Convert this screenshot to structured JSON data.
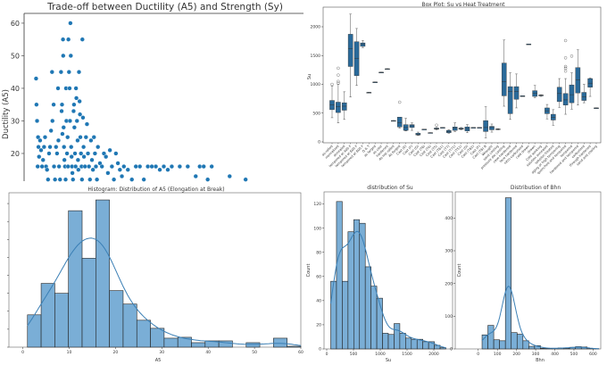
{
  "chart_data": [
    {
      "type": "scatter",
      "title": "Trade-off between Ductility (A5) and Strength (Sy)",
      "xlabel": "",
      "ylabel": "Ductility (A5)",
      "ylim": [
        11.5,
        63
      ],
      "xlim": [
        0,
        1400
      ],
      "yticks": [
        "20",
        "30",
        "40",
        "50",
        "60"
      ],
      "color": "#1f77b4",
      "points": [
        [
          60,
          43
        ],
        [
          62,
          35
        ],
        [
          65,
          30
        ],
        [
          70,
          25
        ],
        [
          72,
          22
        ],
        [
          75,
          19
        ],
        [
          68,
          16
        ],
        [
          80,
          24
        ],
        [
          85,
          21
        ],
        [
          90,
          16
        ],
        [
          95,
          18
        ],
        [
          100,
          22
        ],
        [
          105,
          25
        ],
        [
          110,
          16
        ],
        [
          115,
          15
        ],
        [
          120,
          12
        ],
        [
          125,
          20
        ],
        [
          130,
          22
        ],
        [
          135,
          27
        ],
        [
          140,
          45
        ],
        [
          142,
          30
        ],
        [
          148,
          35
        ],
        [
          150,
          16
        ],
        [
          155,
          12
        ],
        [
          160,
          22
        ],
        [
          165,
          20
        ],
        [
          170,
          40
        ],
        [
          172,
          24
        ],
        [
          175,
          16
        ],
        [
          180,
          12
        ],
        [
          185,
          45
        ],
        [
          188,
          33
        ],
        [
          190,
          35
        ],
        [
          192,
          26
        ],
        [
          195,
          55
        ],
        [
          196,
          50
        ],
        [
          198,
          28
        ],
        [
          200,
          22
        ],
        [
          202,
          18
        ],
        [
          205,
          16
        ],
        [
          208,
          12
        ],
        [
          210,
          40
        ],
        [
          212,
          30
        ],
        [
          215,
          20
        ],
        [
          218,
          25
        ],
        [
          220,
          16
        ],
        [
          222,
          55
        ],
        [
          225,
          45
        ],
        [
          228,
          40
        ],
        [
          230,
          30
        ],
        [
          232,
          60
        ],
        [
          234,
          50
        ],
        [
          236,
          22
        ],
        [
          238,
          19
        ],
        [
          240,
          16
        ],
        [
          242,
          14
        ],
        [
          245,
          12
        ],
        [
          248,
          33
        ],
        [
          250,
          35
        ],
        [
          252,
          28
        ],
        [
          255,
          20
        ],
        [
          258,
          16
        ],
        [
          260,
          40
        ],
        [
          262,
          37
        ],
        [
          265,
          30
        ],
        [
          268,
          24
        ],
        [
          270,
          18
        ],
        [
          272,
          15
        ],
        [
          275,
          45
        ],
        [
          278,
          36
        ],
        [
          280,
          32
        ],
        [
          282,
          25
        ],
        [
          285,
          20
        ],
        [
          288,
          16
        ],
        [
          290,
          12
        ],
        [
          292,
          55
        ],
        [
          295,
          31
        ],
        [
          298,
          22
        ],
        [
          300,
          19
        ],
        [
          305,
          16
        ],
        [
          310,
          25
        ],
        [
          315,
          29
        ],
        [
          320,
          20
        ],
        [
          325,
          16
        ],
        [
          330,
          12
        ],
        [
          335,
          24
        ],
        [
          340,
          18
        ],
        [
          345,
          15
        ],
        [
          350,
          25
        ],
        [
          355,
          20
        ],
        [
          360,
          16
        ],
        [
          365,
          12
        ],
        [
          370,
          22
        ],
        [
          380,
          17
        ],
        [
          390,
          16
        ],
        [
          400,
          20
        ],
        [
          410,
          19
        ],
        [
          420,
          14
        ],
        [
          430,
          21
        ],
        [
          440,
          16
        ],
        [
          450,
          12
        ],
        [
          460,
          20
        ],
        [
          470,
          17
        ],
        [
          480,
          15
        ],
        [
          490,
          13
        ],
        [
          500,
          16
        ],
        [
          520,
          15
        ],
        [
          540,
          12
        ],
        [
          560,
          16
        ],
        [
          580,
          16
        ],
        [
          600,
          12
        ],
        [
          620,
          16
        ],
        [
          640,
          16
        ],
        [
          660,
          16
        ],
        [
          680,
          15
        ],
        [
          700,
          16
        ],
        [
          720,
          15
        ],
        [
          740,
          16
        ],
        [
          780,
          16
        ],
        [
          820,
          16
        ],
        [
          860,
          13
        ],
        [
          880,
          16
        ],
        [
          900,
          16
        ],
        [
          920,
          12
        ],
        [
          940,
          16
        ],
        [
          1030,
          13
        ],
        [
          1110,
          12
        ]
      ]
    },
    {
      "type": "box",
      "title": "Box Plot: Su vs Heat Treatment",
      "ylabel": "Su",
      "ylim": [
        0,
        2340
      ],
      "yticks": [
        "0",
        "500",
        "1000",
        "1500",
        "2000"
      ],
      "color": "#2a6a9a",
      "categories": [
        "as-rolled",
        "normalized",
        "annealed",
        "tempered at 400 F",
        "tempered at 600 F",
        "tempered at 800 F",
        "Q & T",
        "as forged",
        "as cast",
        "hardened",
        "As hot rolled",
        "As forged",
        "Cast (E)",
        "Cast (F)",
        "Cast (G)",
        "Cast (T6)",
        "Cast (T4)",
        "Cast (T5)",
        "Cast (T61)",
        "Cast (T7)",
        "Cast (T71)",
        "Cast (T51)",
        "Cast (O)",
        "Cast (T62)",
        "Cast (F)",
        "Cast (T6) B",
        "Wrought",
        "sand casting",
        "pressure die casting",
        "case-hardened",
        "face hardened",
        "nitro-carburised",
        "cold drawn",
        "drawn",
        "Cold working",
        "solution annealed",
        "solution treated",
        "aging or high tempering",
        "quenched and tempered",
        "tempered",
        "hardened and tempered",
        "carburized",
        "through hardened",
        "sand and cooling"
      ],
      "boxes": [
        [
          420,
          560,
          640,
          720,
          970,
          [
            1000
          ]
        ],
        [
          330,
          510,
          610,
          690,
          1000,
          [
            1020,
            1050,
            1160,
            1280
          ]
        ],
        [
          390,
          550,
          620,
          680,
          870,
          []
        ],
        [
          780,
          1310,
          1620,
          1870,
          2220,
          []
        ],
        [
          980,
          1150,
          1450,
          1740,
          1970,
          []
        ],
        [
          1640,
          1660,
          1700,
          1720,
          1760,
          []
        ],
        [
          860,
          860,
          860,
          860,
          860,
          []
        ],
        [
          1040,
          1040,
          1040,
          1040,
          1040,
          []
        ],
        [
          1210,
          1210,
          1210,
          1210,
          1210,
          []
        ],
        [
          1270,
          1270,
          1270,
          1270,
          1270,
          []
        ],
        [
          370,
          370,
          370,
          370,
          370,
          []
        ],
        [
          240,
          260,
          330,
          430,
          430,
          [
            690
          ]
        ],
        [
          190,
          200,
          250,
          300,
          410,
          []
        ],
        [
          200,
          250,
          280,
          300,
          330,
          []
        ],
        [
          110,
          120,
          135,
          150,
          170,
          []
        ],
        [
          220,
          220,
          220,
          220,
          220,
          []
        ],
        [
          160,
          160,
          160,
          160,
          160,
          []
        ],
        [
          210,
          220,
          230,
          240,
          250,
          [
            290
          ]
        ],
        [
          250,
          250,
          250,
          250,
          250,
          []
        ],
        [
          150,
          160,
          180,
          200,
          210,
          []
        ],
        [
          180,
          200,
          240,
          260,
          330,
          []
        ],
        [
          210,
          220,
          230,
          240,
          250,
          []
        ],
        [
          160,
          190,
          230,
          260,
          300,
          []
        ],
        [
          250,
          250,
          250,
          250,
          250,
          []
        ],
        [
          250,
          250,
          250,
          250,
          250,
          []
        ],
        [
          70,
          180,
          250,
          370,
          610,
          []
        ],
        [
          170,
          210,
          250,
          270,
          310,
          []
        ],
        [
          210,
          215,
          220,
          225,
          230,
          []
        ],
        [
          620,
          800,
          1050,
          1370,
          1770,
          []
        ],
        [
          390,
          490,
          880,
          960,
          1200,
          []
        ],
        [
          590,
          740,
          880,
          960,
          1180,
          []
        ],
        [
          800,
          800,
          800,
          800,
          800,
          []
        ],
        [
          1700,
          1700,
          1700,
          1700,
          1700,
          []
        ],
        [
          770,
          790,
          840,
          890,
          980,
          []
        ],
        [
          790,
          800,
          810,
          815,
          820,
          []
        ],
        [
          400,
          490,
          540,
          590,
          650,
          []
        ],
        [
          290,
          380,
          430,
          480,
          560,
          []
        ],
        [
          600,
          700,
          840,
          950,
          1100,
          []
        ],
        [
          480,
          640,
          730,
          840,
          1100,
          [
            1230,
            1280,
            1310,
            1460,
            1760
          ]
        ],
        [
          570,
          680,
          820,
          990,
          1200,
          [
            1490
          ]
        ],
        [
          640,
          850,
          1080,
          1290,
          1600,
          []
        ],
        [
          680,
          720,
          780,
          860,
          1000,
          []
        ],
        [
          790,
          950,
          1020,
          1100,
          1110,
          []
        ],
        [
          590,
          590,
          590,
          590,
          590,
          []
        ]
      ]
    },
    {
      "type": "histogram",
      "title": "Histogram: Distribution of A5 (Elongation at Break)",
      "xlabel": "A5",
      "xlim": [
        -3,
        60
      ],
      "xticks": [
        "0",
        "10",
        "20",
        "30",
        "40",
        "50",
        "60"
      ],
      "ylim": [
        0,
        172
      ],
      "bin_start": 1,
      "bin_width": 2.95,
      "counts": [
        36,
        71,
        60,
        152,
        99,
        164,
        63,
        48,
        30,
        21,
        10,
        11,
        5,
        7,
        7,
        0,
        5,
        0,
        10,
        1
      ],
      "kde": true,
      "color": "#7aaed6"
    },
    {
      "type": "histogram",
      "title": "distribution of Su",
      "xlabel": "Su",
      "ylabel": "Count",
      "xlim": [
        -50,
        2350
      ],
      "xticks": [
        "0",
        "500",
        "1000",
        "1500",
        "2000"
      ],
      "ylim": [
        0,
        130
      ],
      "yticks": [
        "0",
        "20",
        "40",
        "60",
        "80",
        "100",
        "120"
      ],
      "bin_start": 75,
      "bin_width": 107.5,
      "counts": [
        56,
        122,
        56,
        97,
        107,
        104,
        68,
        52,
        42,
        13,
        12,
        21,
        13,
        9,
        8,
        8,
        6,
        6,
        3,
        1
      ],
      "kde": true,
      "color": "#7aaed6"
    },
    {
      "type": "histogram",
      "title": "Distribution of Bhn",
      "xlabel": "Bhn",
      "ylabel": "Count",
      "xlim": [
        -120,
        640
      ],
      "xticks": [
        "0",
        "100",
        "200",
        "300",
        "400",
        "500",
        "600"
      ],
      "ylim": [
        0,
        480
      ],
      "yticks": [
        "0",
        "100",
        "200",
        "300",
        "400"
      ],
      "bin_start": 20,
      "bin_width": 30.5,
      "counts": [
        43,
        72,
        28,
        25,
        462,
        50,
        45,
        25,
        8,
        10,
        2,
        1,
        2,
        3,
        2,
        5,
        7,
        6,
        1,
        1
      ],
      "kde": true,
      "color": "#7aaed6"
    }
  ]
}
